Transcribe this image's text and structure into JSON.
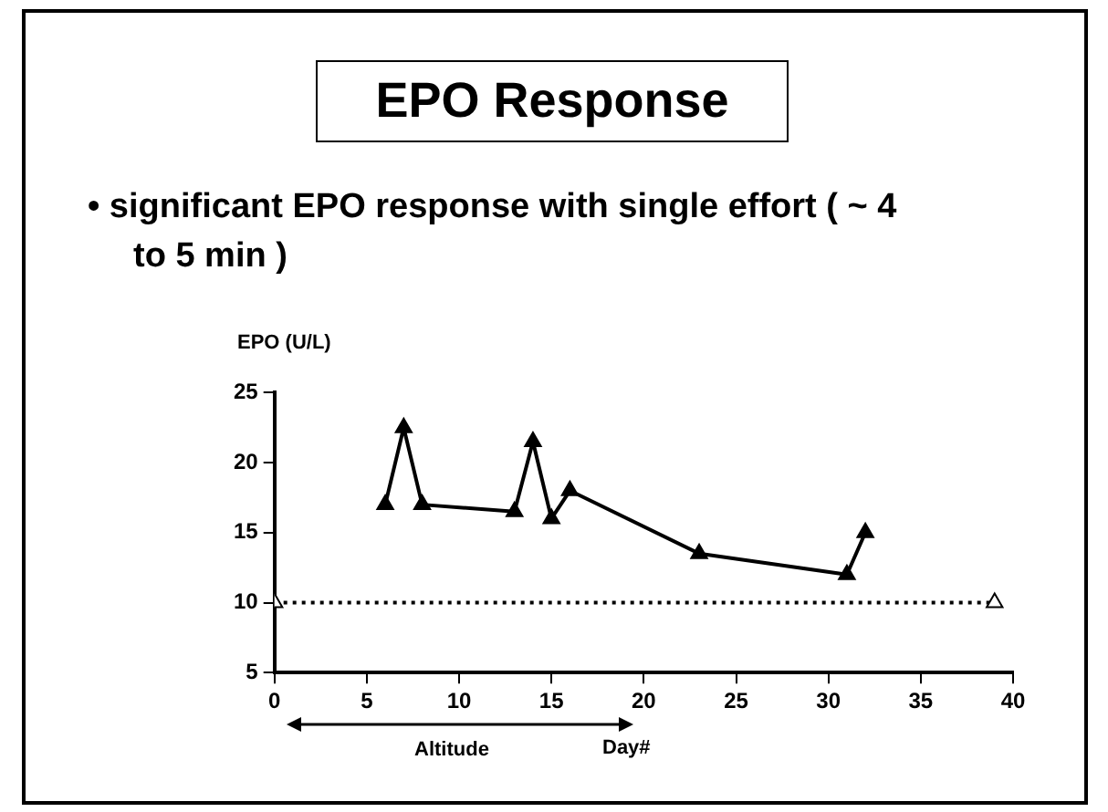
{
  "chart_data": {
    "type": "line",
    "title": "EPO Response",
    "subtitle": "• significant EPO response with single  effort ( ~ 4 to 5 min )",
    "ylabel": "EPO (U/L)",
    "xlabel": "Day#",
    "annotations": [
      "Altitude"
    ],
    "series": [
      {
        "color": "#000000",
        "x": [
          6,
          7,
          8,
          13,
          14,
          15,
          16,
          23,
          31,
          32
        ],
        "values": [
          17,
          22.5,
          17,
          16.5,
          21.5,
          16,
          18,
          13.5,
          12,
          15
        ],
        "marker": "triangle",
        "line_style": "solid"
      },
      {
        "color": "#000000",
        "x": [
          0,
          39
        ],
        "values": [
          10,
          10
        ],
        "marker": "triangle",
        "line_style": "dotted"
      }
    ],
    "xlim": [
      0,
      40
    ],
    "xticks": [
      0,
      5,
      10,
      15,
      20,
      25,
      30,
      35,
      40
    ],
    "ylim": [
      5,
      25
    ],
    "yticks": [
      5,
      10,
      15,
      20,
      25
    ],
    "grid": false,
    "legend": false
  }
}
